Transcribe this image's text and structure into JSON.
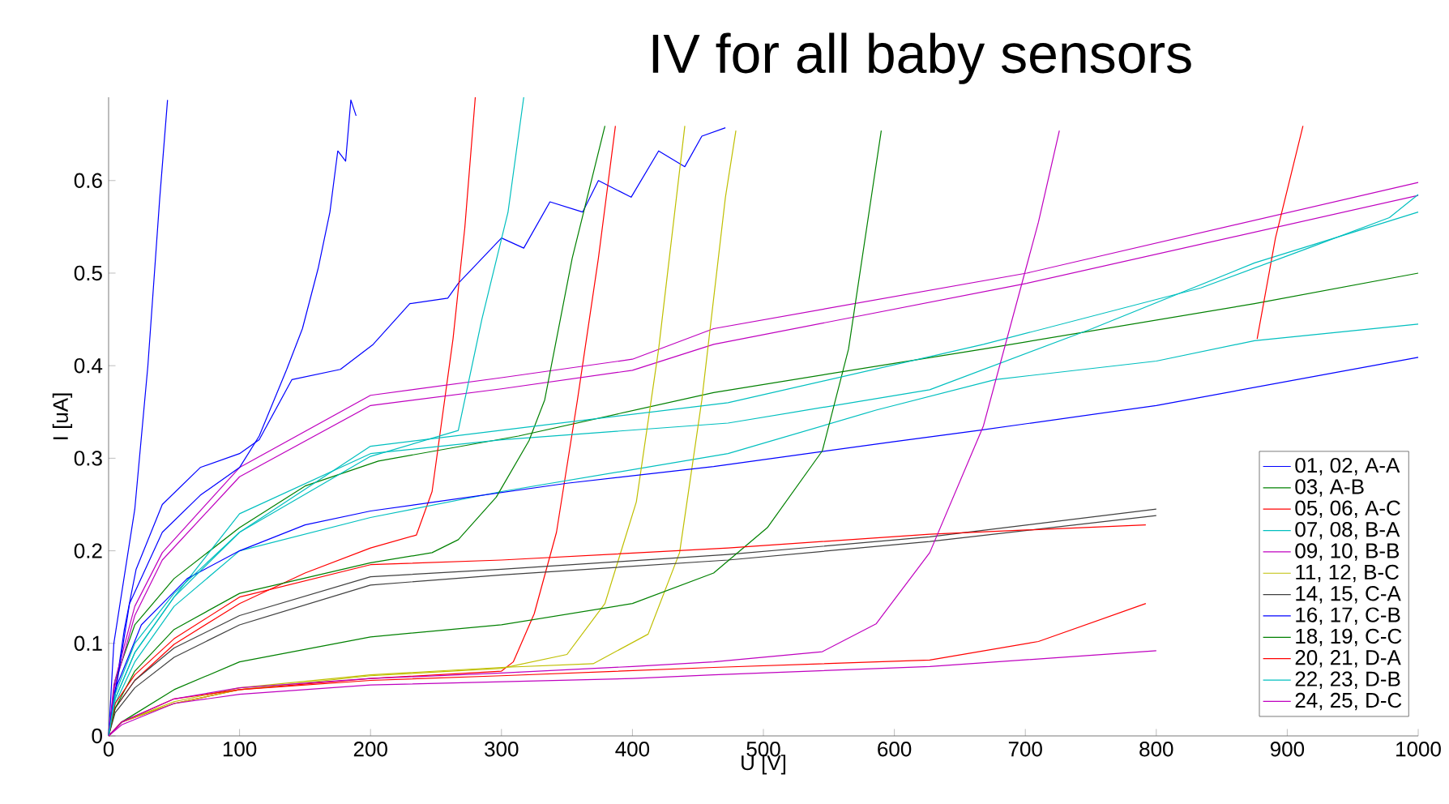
{
  "chart_data": {
    "type": "line",
    "title": "IV for all baby sensors",
    "xlabel": "U [V]",
    "ylabel": "I [uA]",
    "xlim": [
      0,
      1000
    ],
    "ylim": [
      0,
      0.69
    ],
    "xticks": [
      0,
      100,
      200,
      300,
      400,
      500,
      600,
      700,
      800,
      900,
      1000
    ],
    "yticks": [
      0,
      0.1,
      0.2,
      0.3,
      0.4,
      0.5,
      0.6
    ],
    "grid": false,
    "legend": "bottom right",
    "series": [
      {
        "name": "01, 02, A-A",
        "color": "#0000ff",
        "x": [
          0,
          4,
          20,
          30,
          39,
          45
        ],
        "values": [
          0,
          0.1,
          0.245,
          0.4,
          0.58,
          0.687
        ]
      },
      {
        "color": "#0000ff",
        "x": [
          0,
          12,
          21,
          41,
          70,
          100,
          115,
          140,
          177,
          202,
          230,
          259,
          267,
          300,
          317,
          337,
          362,
          374,
          399,
          420,
          440,
          453,
          471
        ],
        "values": [
          0,
          0.115,
          0.18,
          0.25,
          0.29,
          0.305,
          0.32,
          0.385,
          0.396,
          0.423,
          0.467,
          0.473,
          0.489,
          0.538,
          0.527,
          0.577,
          0.566,
          0.6,
          0.582,
          0.632,
          0.615,
          0.648,
          0.657
        ]
      },
      {
        "name": "03, A-B",
        "color": "#008000",
        "x": [
          0,
          5,
          20,
          50,
          100,
          150,
          206,
          313,
          462,
          668,
          875,
          1000
        ],
        "values": [
          0,
          0.06,
          0.12,
          0.17,
          0.225,
          0.27,
          0.297,
          0.324,
          0.371,
          0.418,
          0.467,
          0.5
        ]
      },
      {
        "name": "05, 06, A-C",
        "color": "#ff0000",
        "x": [
          0,
          5,
          20,
          50,
          100,
          150,
          200,
          235,
          247,
          263,
          272,
          280
        ],
        "values": [
          0,
          0.03,
          0.06,
          0.099,
          0.143,
          0.176,
          0.203,
          0.217,
          0.264,
          0.429,
          0.549,
          0.69
        ]
      },
      {
        "color": "#ff0000",
        "x": [
          0,
          10,
          50,
          100,
          200,
          300,
          309,
          325,
          342,
          358,
          374,
          387
        ],
        "values": [
          0,
          0.015,
          0.035,
          0.05,
          0.062,
          0.07,
          0.08,
          0.132,
          0.22,
          0.363,
          0.516,
          0.659
        ]
      },
      {
        "name": "07, 08, B-A",
        "color": "#00bfbf",
        "x": [
          0,
          5,
          20,
          50,
          100,
          200,
          300,
          473,
          627,
          751,
          875,
          1000
        ],
        "values": [
          0,
          0.04,
          0.09,
          0.15,
          0.24,
          0.305,
          0.32,
          0.338,
          0.374,
          0.44,
          0.511,
          0.566
        ]
      },
      {
        "color": "#00bfbf",
        "x": [
          0,
          5,
          20,
          50,
          100,
          200,
          300,
          473,
          586,
          677,
          800,
          875,
          1000
        ],
        "values": [
          0,
          0.035,
          0.08,
          0.14,
          0.2,
          0.236,
          0.264,
          0.305,
          0.352,
          0.385,
          0.405,
          0.427,
          0.445
        ]
      },
      {
        "name": "09, 10, B-B",
        "color": "#bf00bf",
        "x": [
          0,
          4,
          20,
          41,
          100,
          200,
          300,
          400,
          462,
          701,
          1000
        ],
        "values": [
          0,
          0.055,
          0.14,
          0.198,
          0.29,
          0.368,
          0.387,
          0.407,
          0.44,
          0.5,
          0.598
        ]
      },
      {
        "color": "#bf00bf",
        "x": [
          0,
          4,
          20,
          41,
          100,
          200,
          300,
          400,
          462,
          701,
          1000
        ],
        "values": [
          0,
          0.05,
          0.13,
          0.19,
          0.28,
          0.357,
          0.375,
          0.395,
          0.423,
          0.489,
          0.584
        ]
      },
      {
        "name": "11, 12, B-C",
        "color": "#bfbf00",
        "x": [
          0,
          10,
          50,
          100,
          200,
          300,
          350,
          379,
          403,
          420,
          440
        ],
        "values": [
          0,
          0.015,
          0.035,
          0.05,
          0.065,
          0.073,
          0.088,
          0.143,
          0.253,
          0.418,
          0.659
        ]
      },
      {
        "color": "#bfbf00",
        "x": [
          0,
          10,
          50,
          100,
          200,
          300,
          370,
          412,
          436,
          453,
          471,
          479
        ],
        "values": [
          0,
          0.015,
          0.037,
          0.052,
          0.066,
          0.074,
          0.078,
          0.11,
          0.198,
          0.363,
          0.582,
          0.654
        ]
      },
      {
        "name": "14, 15, C-A",
        "color": "#404040",
        "x": [
          0,
          5,
          20,
          50,
          100,
          200,
          300,
          473,
          627,
          800
        ],
        "values": [
          0,
          0.03,
          0.06,
          0.095,
          0.13,
          0.172,
          0.18,
          0.196,
          0.215,
          0.245
        ]
      },
      {
        "color": "#404040",
        "x": [
          0,
          5,
          20,
          50,
          100,
          200,
          300,
          473,
          627,
          800
        ],
        "values": [
          0,
          0.025,
          0.052,
          0.085,
          0.12,
          0.163,
          0.174,
          0.19,
          0.21,
          0.238
        ]
      },
      {
        "name": "16, 17, C-B",
        "color": "#0000ff",
        "x": [
          0,
          16,
          41,
          70,
          100,
          115,
          136,
          148,
          160,
          169,
          175,
          181,
          185,
          189
        ],
        "values": [
          0,
          0.143,
          0.22,
          0.26,
          0.29,
          0.324,
          0.396,
          0.44,
          0.505,
          0.566,
          0.632,
          0.621,
          0.687,
          0.67
        ]
      },
      {
        "color": "#0000ff",
        "x": [
          0,
          5,
          25,
          60,
          100,
          150,
          200,
          250,
          350,
          462,
          600,
          664,
          800,
          1000
        ],
        "values": [
          0,
          0.05,
          0.12,
          0.17,
          0.2,
          0.228,
          0.243,
          0.253,
          0.273,
          0.291,
          0.318,
          0.33,
          0.357,
          0.409
        ]
      },
      {
        "name": "18, 19, C-C",
        "color": "#008000",
        "x": [
          0,
          5,
          20,
          50,
          100,
          200,
          247,
          267,
          296,
          321,
          333,
          354,
          379
        ],
        "values": [
          0,
          0.03,
          0.07,
          0.115,
          0.154,
          0.187,
          0.198,
          0.212,
          0.258,
          0.319,
          0.363,
          0.516,
          0.659
        ]
      },
      {
        "color": "#008000",
        "x": [
          0,
          10,
          50,
          100,
          200,
          300,
          400,
          462,
          503,
          545,
          565,
          590
        ],
        "values": [
          0,
          0.015,
          0.05,
          0.08,
          0.107,
          0.12,
          0.143,
          0.176,
          0.225,
          0.308,
          0.418,
          0.654
        ]
      },
      {
        "name": "20, 21, D-A",
        "color": "#ff0000",
        "x": [
          0,
          5,
          20,
          50,
          100,
          200,
          300,
          473,
          627,
          792
        ],
        "values": [
          0,
          0.035,
          0.066,
          0.105,
          0.15,
          0.185,
          0.19,
          0.203,
          0.218,
          0.228
        ]
      },
      {
        "color": "#ff0000",
        "x": [
          0,
          10,
          50,
          100,
          200,
          300,
          462,
          627,
          710,
          792,
          850,
          877,
          891,
          912
        ],
        "values": [
          0,
          0.015,
          0.04,
          0.05,
          0.06,
          0.065,
          0.074,
          0.082,
          0.102,
          0.143,
          null,
          0.429,
          0.538,
          0.659
        ]
      },
      {
        "name": "22, 23, D-B",
        "color": "#00bfbf",
        "x": [
          0,
          5,
          20,
          50,
          100,
          200,
          267,
          285,
          305,
          317
        ],
        "values": [
          0,
          0.045,
          0.1,
          0.154,
          0.22,
          0.302,
          0.33,
          0.45,
          0.566,
          0.69
        ]
      },
      {
        "color": "#00bfbf",
        "x": [
          0,
          5,
          20,
          50,
          100,
          200,
          473,
          668,
          834,
          916,
          978,
          1000
        ],
        "values": [
          0,
          0.04,
          0.09,
          0.15,
          0.22,
          0.313,
          0.36,
          0.423,
          0.484,
          0.527,
          0.56,
          0.585
        ]
      },
      {
        "name": "24, 25, D-C",
        "color": "#bf00bf",
        "x": [
          0,
          10,
          50,
          100,
          200,
          300,
          400,
          462,
          545,
          586,
          627,
          668,
          710,
          726
        ],
        "values": [
          0,
          0.015,
          0.04,
          0.052,
          0.062,
          0.068,
          0.075,
          0.08,
          0.091,
          0.121,
          0.198,
          0.335,
          0.555,
          0.654
        ]
      },
      {
        "color": "#bf00bf",
        "x": [
          0,
          10,
          50,
          100,
          200,
          400,
          462,
          627,
          800
        ],
        "values": [
          0,
          0.012,
          0.035,
          0.045,
          0.055,
          0.062,
          0.066,
          0.075,
          0.092
        ]
      }
    ]
  }
}
